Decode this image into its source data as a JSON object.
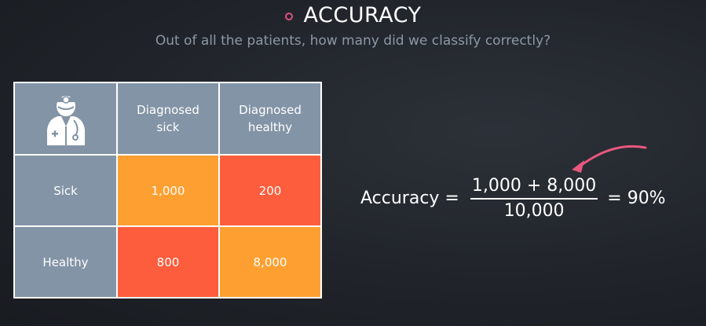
{
  "header": {
    "title": "ACCURACY",
    "subtitle": "Out of all the patients, how many did we classify correctly?"
  },
  "matrix": {
    "col_headers": [
      "Diagnosed sick",
      "Diagnosed healthy"
    ],
    "rows": [
      {
        "label": "Sick",
        "cells": [
          "1,000",
          "200"
        ]
      },
      {
        "label": "Healthy",
        "cells": [
          "800",
          "8,000"
        ]
      }
    ],
    "colors": {
      "correct": "#fda031",
      "wrong": "#fd5d3c",
      "header": "#8394a6"
    }
  },
  "formula": {
    "lhs": "Accuracy =",
    "numerator": "1,000 + 8,000",
    "denominator": "10,000",
    "result": "= 90%"
  },
  "icons": {
    "doctor": "doctor-icon",
    "arrow": "curved-arrow-icon",
    "bullet": "bullet-circle-icon"
  }
}
